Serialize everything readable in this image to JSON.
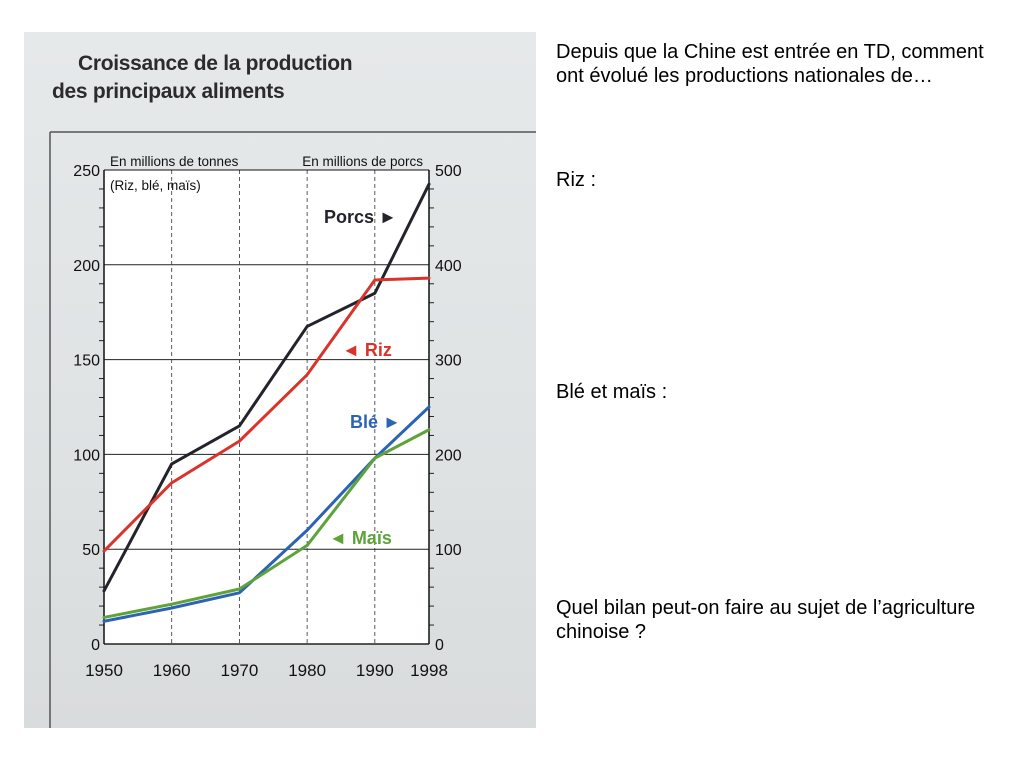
{
  "scan": {
    "title_line1": "Croissance de la production",
    "title_line2": "des principaux aliments"
  },
  "chart_data": {
    "type": "line",
    "x": [
      "1950",
      "1960",
      "1970",
      "1980",
      "1990",
      "1998"
    ],
    "left_axis": {
      "label": "En millions de tonnes",
      "sublabel": "(Riz, blé, maïs)",
      "ticks": [
        0,
        50,
        100,
        150,
        200,
        250
      ],
      "ylim": [
        0,
        250
      ]
    },
    "right_axis": {
      "label": "En millions de porcs",
      "ticks": [
        0,
        100,
        200,
        300,
        400,
        500
      ],
      "ylim": [
        0,
        500
      ]
    },
    "grid": true,
    "series": [
      {
        "name": "Porcs",
        "axis": "right",
        "color": "#23232b",
        "values": [
          56,
          190,
          230,
          335,
          370,
          485
        ],
        "label": "Porcs ►"
      },
      {
        "name": "Riz",
        "axis": "left",
        "color": "#d9342b",
        "values": [
          49,
          85,
          107,
          142,
          192,
          193
        ],
        "label": "◄ Riz"
      },
      {
        "name": "Blé",
        "axis": "left",
        "color": "#2d63b4",
        "values": [
          12,
          19,
          27,
          60,
          98,
          125
        ],
        "label": "Blé ►"
      },
      {
        "name": "Maïs",
        "axis": "left",
        "color": "#5ea33a",
        "values": [
          14,
          21,
          29,
          52,
          98,
          113
        ],
        "label": "◄ Maïs"
      }
    ]
  },
  "right_text": {
    "intro": "Depuis que la Chine est entrée en TD, comment ont évolué les productions nationales de…",
    "riz": "Riz :",
    "ble_mais": "Blé et maïs :",
    "bilan": "Quel bilan peut-on faire au sujet de l’agriculture chinoise ?"
  }
}
